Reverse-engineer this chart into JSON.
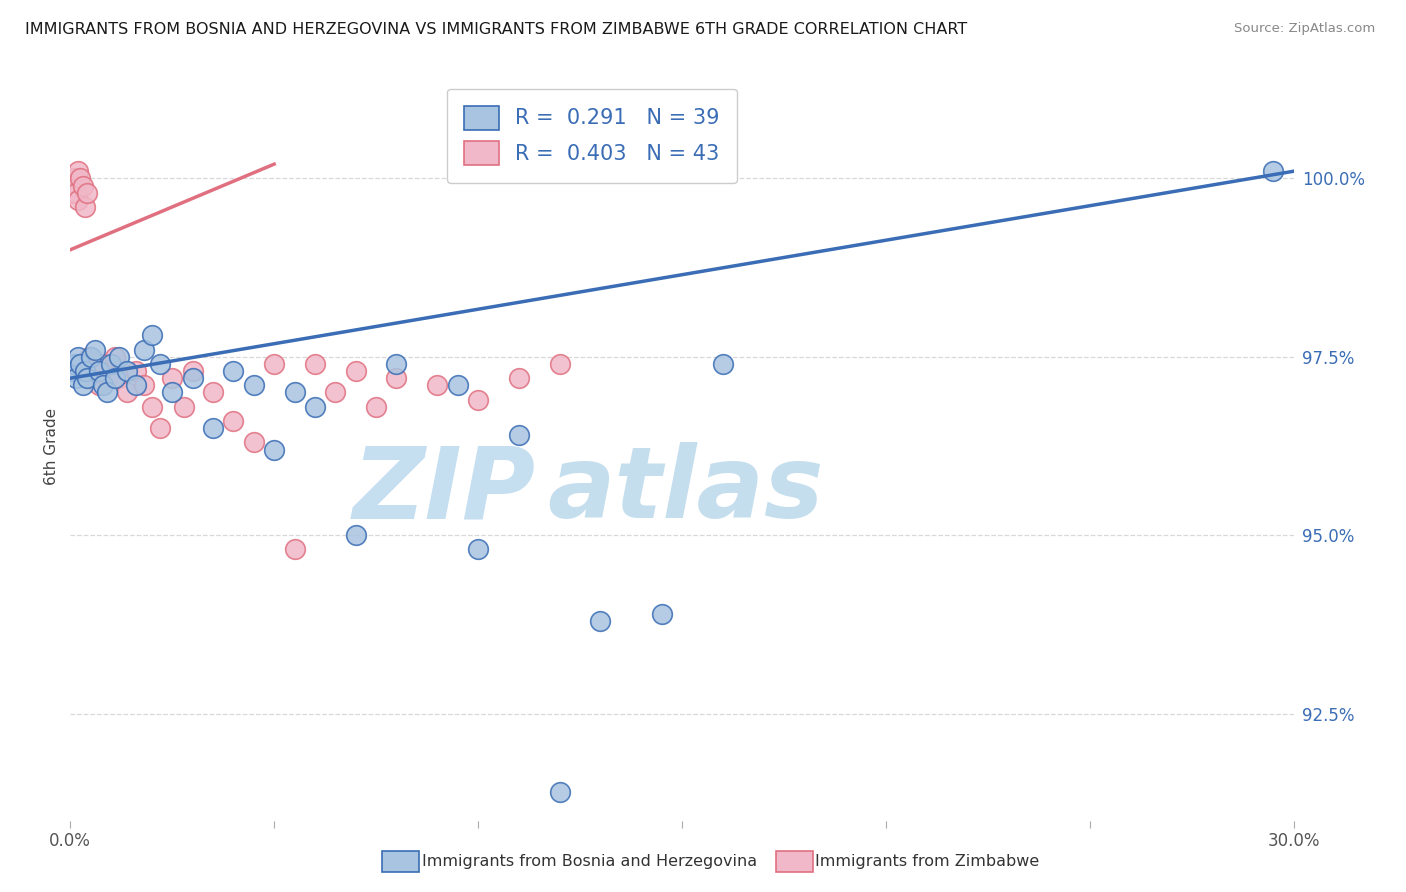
{
  "title": "IMMIGRANTS FROM BOSNIA AND HERZEGOVINA VS IMMIGRANTS FROM ZIMBABWE 6TH GRADE CORRELATION CHART",
  "source": "Source: ZipAtlas.com",
  "ylabel": "6th Grade",
  "yaxis_values": [
    100.0,
    97.5,
    95.0,
    92.5
  ],
  "xmin": 0.0,
  "xmax": 30.0,
  "ymin": 91.0,
  "ymax": 101.5,
  "legend_blue_r": "0.291",
  "legend_blue_n": "39",
  "legend_pink_r": "0.403",
  "legend_pink_n": "43",
  "blue_scatter_x": [
    0.05,
    0.1,
    0.15,
    0.2,
    0.25,
    0.3,
    0.35,
    0.4,
    0.5,
    0.6,
    0.7,
    0.8,
    0.9,
    1.0,
    1.1,
    1.2,
    1.4,
    1.6,
    1.8,
    2.0,
    2.2,
    2.5,
    3.0,
    3.5,
    4.0,
    4.5,
    5.0,
    5.5,
    6.0,
    7.0,
    8.0,
    9.5,
    10.0,
    11.0,
    12.0,
    13.0,
    14.5,
    16.0,
    29.5
  ],
  "blue_scatter_y": [
    97.3,
    97.4,
    97.2,
    97.5,
    97.4,
    97.1,
    97.3,
    97.2,
    97.5,
    97.6,
    97.3,
    97.1,
    97.0,
    97.4,
    97.2,
    97.5,
    97.3,
    97.1,
    97.6,
    97.8,
    97.4,
    97.0,
    97.2,
    96.5,
    97.3,
    97.1,
    96.2,
    97.0,
    96.8,
    95.0,
    97.4,
    97.1,
    94.8,
    96.4,
    91.4,
    93.8,
    93.9,
    97.4,
    100.1
  ],
  "pink_scatter_x": [
    0.05,
    0.1,
    0.1,
    0.15,
    0.2,
    0.2,
    0.25,
    0.3,
    0.3,
    0.35,
    0.4,
    0.45,
    0.5,
    0.55,
    0.6,
    0.7,
    0.8,
    0.9,
    1.0,
    1.1,
    1.2,
    1.4,
    1.6,
    1.8,
    2.0,
    2.2,
    2.5,
    2.8,
    3.0,
    3.5,
    4.0,
    4.5,
    5.0,
    5.5,
    6.0,
    6.5,
    7.0,
    7.5,
    8.0,
    9.0,
    10.0,
    11.0,
    12.0
  ],
  "pink_scatter_y": [
    99.8,
    100.0,
    99.9,
    99.8,
    100.1,
    99.7,
    100.0,
    99.9,
    97.3,
    99.6,
    99.8,
    97.5,
    97.4,
    97.2,
    97.3,
    97.1,
    97.4,
    97.2,
    97.3,
    97.5,
    97.2,
    97.0,
    97.3,
    97.1,
    96.8,
    96.5,
    97.2,
    96.8,
    97.3,
    97.0,
    96.6,
    96.3,
    97.4,
    94.8,
    97.4,
    97.0,
    97.3,
    96.8,
    97.2,
    97.1,
    96.9,
    97.2,
    97.4
  ],
  "blue_color": "#a8c4e0",
  "blue_line_color": "#3a6db5",
  "pink_color": "#f0b8c8",
  "pink_line_color": "#e07080",
  "background_color": "#ffffff",
  "grid_color": "#d8d8d8",
  "watermark_zip_color": "#c5dff0",
  "watermark_atlas_color": "#5ba3d0"
}
